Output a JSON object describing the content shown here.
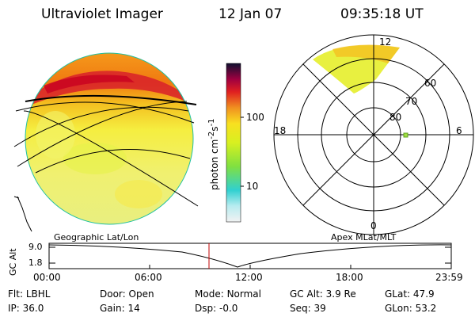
{
  "header": {
    "instrument": "Ultraviolet Imager",
    "date": "12 Jan 07",
    "time": "09:35:18 UT"
  },
  "colorbar": {
    "label": "photon cm^-2s^-1",
    "ticks": [
      "100",
      "10"
    ],
    "scale": "log"
  },
  "polar_plot": {
    "mlt_labels": [
      "12",
      "18",
      "6",
      "0"
    ],
    "lat_labels": [
      "60",
      "70",
      "80"
    ]
  },
  "timeline": {
    "left_label": "Geographic Lat/Lon",
    "right_label": "Apex MLat/MLT",
    "y_axis_label": "GC Alt",
    "y_ticks": [
      "9.0",
      "1.8"
    ],
    "x_ticks": [
      "00:00",
      "06:00",
      "12:00",
      "18:00",
      "23:59"
    ],
    "current_time_marker": "09:35"
  },
  "footer": {
    "row1": [
      {
        "label": "Flt:",
        "value": "LBHL"
      },
      {
        "label": "Door:",
        "value": "Open"
      },
      {
        "label": "Mode:",
        "value": "Normal"
      },
      {
        "label": "GC Alt:",
        "value": "3.9 Re"
      },
      {
        "label": "GLat:",
        "value": "47.9"
      }
    ],
    "row2": [
      {
        "label": "IP:",
        "value": "36.0"
      },
      {
        "label": "Gain:",
        "value": "14"
      },
      {
        "label": "Dsp:",
        "value": "-0.0"
      },
      {
        "label": "Seq:",
        "value": "39"
      },
      {
        "label": "GLon:",
        "value": "53.2"
      }
    ]
  }
}
